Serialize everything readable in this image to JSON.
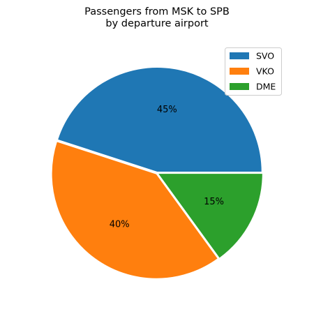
{
  "chart_data": {
    "type": "pie",
    "title": "Passengers from MSK to SPB",
    "subtitle": "by departure airport",
    "categories": [
      "SVO",
      "VKO",
      "DME"
    ],
    "values": [
      45,
      40,
      15
    ],
    "labels": [
      "45%",
      "40%",
      "15%"
    ],
    "colors": [
      "#1f77b4",
      "#ff7f0e",
      "#2ca02c"
    ],
    "start_angle_deg": 0,
    "direction": "counterclockwise",
    "explode": [
      0.01,
      0.01,
      0.01
    ],
    "legend_position": "top-right"
  }
}
